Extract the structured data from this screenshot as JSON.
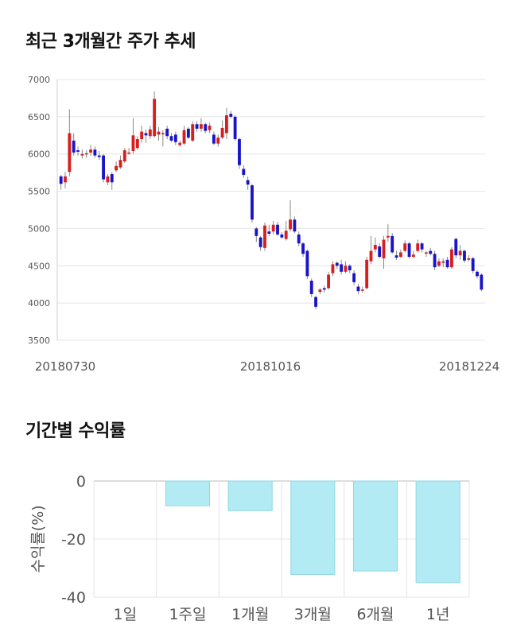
{
  "sections": {
    "price_title": "최근 3개월간 주가 추세",
    "returns_title": "기간별 수익률"
  },
  "colors": {
    "up": "#d81e1e",
    "down": "#1a14c8",
    "bar_fill": "#b2ebf4",
    "bar_stroke": "#8fd6e3",
    "grid": "#e4e4e4",
    "axis_text": "#555555"
  },
  "chart_data": [
    {
      "type": "candlestick",
      "title": "",
      "ylim": [
        3500,
        7000
      ],
      "y_ticks": [
        3500,
        4000,
        4500,
        5000,
        5500,
        6000,
        6500,
        7000
      ],
      "x_tick_labels": [
        "20180730",
        "20181016",
        "20181224"
      ],
      "candles": [
        [
          5700,
          5600,
          5520,
          5720
        ],
        [
          5620,
          5700,
          5540,
          5760
        ],
        [
          5760,
          6280,
          5700,
          6600
        ],
        [
          6180,
          6020,
          5980,
          6280
        ],
        [
          6050,
          6030,
          5980,
          6100
        ],
        [
          5980,
          6000,
          5940,
          6060
        ],
        [
          6000,
          6010,
          5950,
          6050
        ],
        [
          6020,
          6060,
          5980,
          6120
        ],
        [
          6060,
          5980,
          5950,
          6100
        ],
        [
          5980,
          5960,
          5920,
          6040
        ],
        [
          5980,
          5660,
          5620,
          6000
        ],
        [
          5620,
          5700,
          5580,
          5730
        ],
        [
          5730,
          5620,
          5520,
          5760
        ],
        [
          5780,
          5840,
          5760,
          5900
        ],
        [
          5820,
          5920,
          5800,
          5980
        ],
        [
          5900,
          6050,
          5880,
          6080
        ],
        [
          6020,
          6020,
          5990,
          6080
        ],
        [
          6040,
          6250,
          6000,
          6480
        ],
        [
          6080,
          6200,
          6060,
          6240
        ],
        [
          6200,
          6300,
          6150,
          6380
        ],
        [
          6280,
          6250,
          6150,
          6330
        ],
        [
          6240,
          6330,
          6200,
          6380
        ],
        [
          6240,
          6740,
          6220,
          6840
        ],
        [
          6260,
          6300,
          6180,
          6360
        ],
        [
          6280,
          6280,
          6100,
          6320
        ],
        [
          6340,
          6240,
          6200,
          6380
        ],
        [
          6240,
          6180,
          6160,
          6280
        ],
        [
          6260,
          6160,
          6120,
          6300
        ],
        [
          6120,
          6150,
          6100,
          6180
        ],
        [
          6140,
          6320,
          6120,
          6380
        ],
        [
          6340,
          6220,
          6200,
          6360
        ],
        [
          6180,
          6400,
          6160,
          6440
        ],
        [
          6400,
          6340,
          6300,
          6440
        ],
        [
          6340,
          6400,
          6300,
          6480
        ],
        [
          6400,
          6310,
          6280,
          6420
        ],
        [
          6320,
          6380,
          6280,
          6420
        ],
        [
          6260,
          6140,
          6120,
          6300
        ],
        [
          6140,
          6220,
          6100,
          6260
        ],
        [
          6220,
          6350,
          6200,
          6450
        ],
        [
          6280,
          6520,
          6200,
          6620
        ],
        [
          6540,
          6500,
          6480,
          6580
        ],
        [
          6500,
          6200,
          6180,
          6520
        ],
        [
          6200,
          5850,
          5800,
          6220
        ],
        [
          5800,
          5720,
          5680,
          5850
        ],
        [
          5650,
          5590,
          5520,
          5700
        ],
        [
          5580,
          5120,
          5080,
          5600
        ],
        [
          5000,
          4900,
          4820,
          5020
        ],
        [
          4880,
          4750,
          4700,
          4900
        ],
        [
          4740,
          5040,
          4700,
          5080
        ],
        [
          4960,
          4930,
          4900,
          5050
        ],
        [
          4960,
          5050,
          4920,
          5100
        ],
        [
          5050,
          4920,
          4900,
          5090
        ],
        [
          4920,
          4880,
          4860,
          4950
        ],
        [
          4860,
          4970,
          4840,
          5100
        ],
        [
          4990,
          5120,
          4960,
          5380
        ],
        [
          5120,
          4960,
          4940,
          5160
        ],
        [
          4920,
          4800,
          4760,
          4960
        ],
        [
          4800,
          4660,
          4620,
          4820
        ],
        [
          4700,
          4360,
          4320,
          4720
        ],
        [
          4300,
          4120,
          4080,
          4330
        ],
        [
          4080,
          3950,
          3920,
          4100
        ],
        [
          4150,
          4180,
          4120,
          4200
        ],
        [
          4200,
          4180,
          4140,
          4230
        ],
        [
          4200,
          4380,
          4180,
          4420
        ],
        [
          4400,
          4520,
          4360,
          4560
        ],
        [
          4540,
          4500,
          4460,
          4560
        ],
        [
          4520,
          4420,
          4380,
          4580
        ],
        [
          4420,
          4500,
          4400,
          4560
        ],
        [
          4500,
          4440,
          4400,
          4520
        ],
        [
          4400,
          4280,
          4240,
          4440
        ],
        [
          4220,
          4160,
          4120,
          4260
        ],
        [
          4180,
          4180,
          4140,
          4220
        ],
        [
          4200,
          4580,
          4180,
          4620
        ],
        [
          4560,
          4700,
          4520,
          4900
        ],
        [
          4720,
          4780,
          4680,
          4880
        ],
        [
          4760,
          4620,
          4600,
          4800
        ],
        [
          4600,
          4850,
          4460,
          4900
        ],
        [
          4880,
          4900,
          4820,
          5060
        ],
        [
          4900,
          4680,
          4660,
          4940
        ],
        [
          4640,
          4610,
          4580,
          4700
        ],
        [
          4620,
          4680,
          4600,
          4720
        ],
        [
          4700,
          4800,
          4680,
          4840
        ],
        [
          4800,
          4620,
          4600,
          4820
        ],
        [
          4620,
          4650,
          4600,
          4700
        ],
        [
          4700,
          4800,
          4680,
          4850
        ],
        [
          4800,
          4720,
          4680,
          4820
        ],
        [
          4680,
          4680,
          4620,
          4700
        ],
        [
          4700,
          4660,
          4640,
          4740
        ],
        [
          4660,
          4480,
          4440,
          4700
        ],
        [
          4500,
          4560,
          4480,
          4600
        ],
        [
          4540,
          4560,
          4480,
          4600
        ],
        [
          4580,
          4480,
          4460,
          4620
        ],
        [
          4480,
          4720,
          4460,
          4750
        ],
        [
          4860,
          4640,
          4600,
          4880
        ],
        [
          4640,
          4700,
          4580,
          4780
        ],
        [
          4700,
          4570,
          4540,
          4720
        ],
        [
          4580,
          4600,
          4560,
          4640
        ],
        [
          4600,
          4430,
          4400,
          4620
        ],
        [
          4420,
          4360,
          4330,
          4440
        ],
        [
          4380,
          4180,
          4160,
          4400
        ]
      ]
    },
    {
      "type": "bar",
      "title": "",
      "ylabel": "수익률(%)",
      "ylim": [
        -40,
        0
      ],
      "y_ticks": [
        0,
        -20,
        -40
      ],
      "categories": [
        "1일",
        "1주일",
        "1개월",
        "3개월",
        "6개월",
        "1년"
      ],
      "values": [
        0,
        -8.5,
        -10.2,
        -32.2,
        -31.0,
        -35.0
      ]
    }
  ]
}
